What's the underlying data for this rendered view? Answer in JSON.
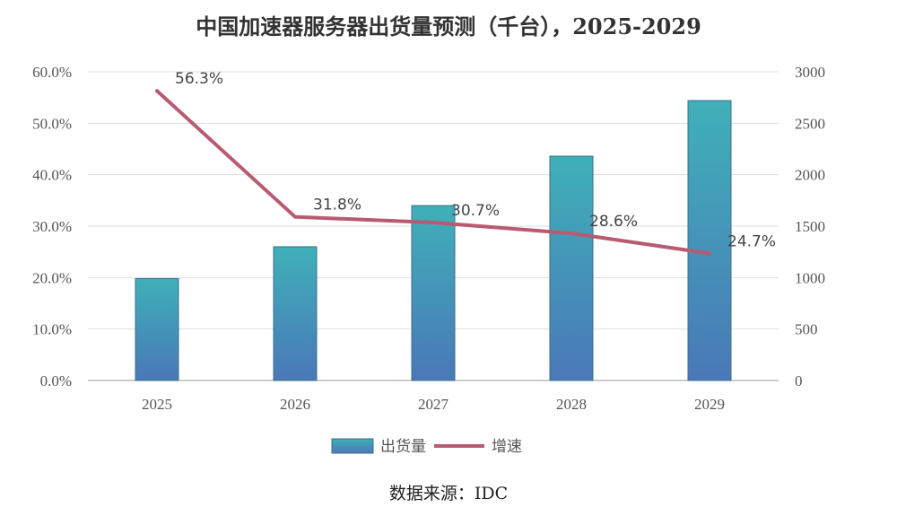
{
  "chart_data": {
    "type": "bar",
    "title": "中国加速器服务器出货量预测（千台），2025-2029",
    "categories": [
      "2025",
      "2026",
      "2027",
      "2028",
      "2029"
    ],
    "series": [
      {
        "name": "出货量",
        "type": "bar",
        "axis": "right",
        "values": [
          990,
          1300,
          1700,
          2180,
          2720
        ],
        "color": "#3fa7b5"
      },
      {
        "name": "增速",
        "type": "line",
        "axis": "left",
        "values": [
          56.3,
          31.8,
          30.7,
          28.6,
          24.7
        ],
        "labels": [
          "56.3%",
          "31.8%",
          "30.7%",
          "28.6%",
          "24.7%"
        ],
        "color": "#b85b72"
      }
    ],
    "y_left": {
      "ticks": [
        "0.0%",
        "10.0%",
        "20.0%",
        "30.0%",
        "40.0%",
        "50.0%",
        "60.0%"
      ],
      "range": [
        0,
        60
      ]
    },
    "y_right": {
      "ticks": [
        "0",
        "500",
        "1000",
        "1500",
        "2000",
        "2500",
        "3000"
      ],
      "range": [
        0,
        3000
      ]
    },
    "grid": true,
    "legend_position": "bottom",
    "source": "数据来源：IDC"
  }
}
